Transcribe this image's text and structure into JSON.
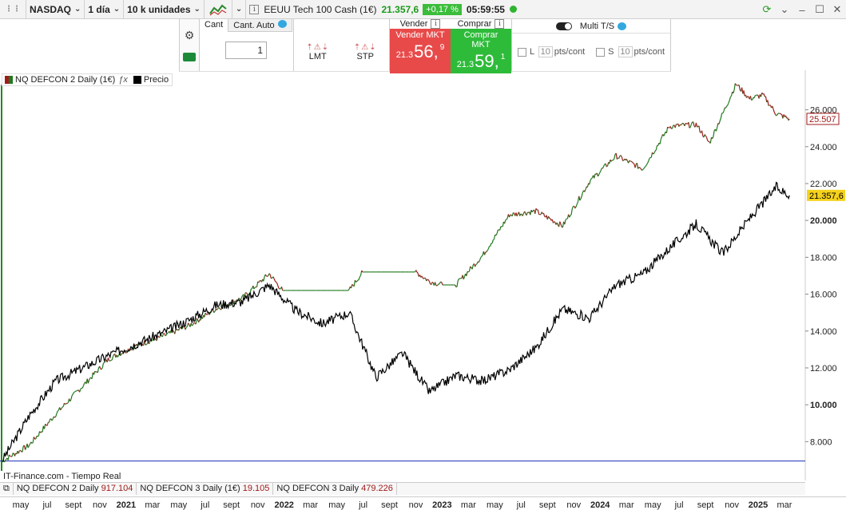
{
  "toolbar": {
    "market": "NASDAQ",
    "period": "1 día",
    "units": "10 k unidades",
    "instrument": "EEUU Tech 100 Cash (1€)",
    "price": "21.357,6",
    "change": "+0,17 %",
    "clock": "05:59:55"
  },
  "order_panel": {
    "tab_qty": "Cant",
    "tab_auto": "Cant. Auto",
    "qty": "1",
    "lmt": "LMT",
    "stp": "STP",
    "sell_head": "Vender",
    "buy_head": "Comprar",
    "sell_title": "Vender MKT",
    "sell_pre": "21.3",
    "sell_big": "56,",
    "sell_sup": "9",
    "buy_title": "Comprar MKT",
    "buy_pre": "21.3",
    "buy_big": "59,",
    "buy_sup": "1",
    "multi_ts": "Multi T/S",
    "long_label": "L",
    "short_label": "S",
    "long_pts": "10",
    "short_pts": "10",
    "pts_unit": "pts/cont"
  },
  "legend": {
    "indicator": "NQ DEFCON 2 Daily (1€)",
    "price_label": "Precio"
  },
  "footer": {
    "source": "IT-Finance.com - Tiempo Real",
    "items": [
      {
        "label": "NQ DEFCON 2 Daily",
        "value": "917.104"
      },
      {
        "label": "NQ DEFCON 3 Daily (1€)",
        "value": "19.105"
      },
      {
        "label": "NQ DEFCON 3 Daily",
        "value": "479.226"
      }
    ]
  },
  "chart_data": {
    "type": "line",
    "yticks": [
      "26.000",
      "24.000",
      "22.000",
      "20.000",
      "18.000",
      "16.000",
      "14.000",
      "12.000",
      "10.000",
      "8.000"
    ],
    "ytick_values": [
      26000,
      24000,
      22000,
      20000,
      18000,
      16000,
      14000,
      12000,
      10000,
      8000
    ],
    "ylim": [
      6500,
      27800
    ],
    "xlabels": [
      "may",
      "jul",
      "sept",
      "nov",
      "2021",
      "mar",
      "may",
      "jul",
      "sept",
      "nov",
      "2022",
      "mar",
      "may",
      "jul",
      "sept",
      "nov",
      "2023",
      "mar",
      "may",
      "jul",
      "sept",
      "nov",
      "2024",
      "mar",
      "may",
      "jul",
      "sept",
      "nov",
      "2025",
      "mar"
    ],
    "xlabel_bold": [
      false,
      false,
      false,
      false,
      true,
      false,
      false,
      false,
      false,
      false,
      true,
      false,
      false,
      false,
      false,
      false,
      true,
      false,
      false,
      false,
      false,
      false,
      true,
      false,
      false,
      false,
      false,
      false,
      true,
      false
    ],
    "last_price_label": "21.357,6",
    "last_indicator_label": "25.507",
    "hline": 6950,
    "colors": {
      "price": "#000000",
      "indicator_up": "#1e7a1e",
      "indicator_down": "#a01b1b",
      "hline": "#1a2fb8",
      "last_price_bg": "#f5d21c"
    },
    "series": [
      {
        "name": "Precio",
        "x": [
          0,
          2,
          4,
          6,
          8,
          10,
          12,
          14,
          16,
          18,
          20,
          22,
          24,
          26,
          28,
          30,
          32,
          34,
          36,
          38,
          40,
          42,
          44,
          46,
          48,
          50,
          52,
          54,
          56,
          58,
          59
        ],
        "values": [
          7000,
          9400,
          11300,
          12000,
          12700,
          13300,
          13900,
          14600,
          15400,
          15600,
          16500,
          15100,
          14400,
          15000,
          11500,
          12800,
          10700,
          11600,
          11300,
          11900,
          13100,
          15200,
          14700,
          16500,
          17100,
          18500,
          19800,
          18200,
          20100,
          21800,
          21357
        ]
      },
      {
        "name": "NQ DEFCON 2 Daily (1€)",
        "x": [
          0,
          2,
          4,
          6,
          8,
          10,
          12,
          14,
          16,
          18,
          20,
          21,
          26,
          27,
          31,
          32,
          33,
          34,
          36,
          38,
          40,
          42,
          44,
          46,
          48,
          50,
          52,
          53,
          55,
          56,
          57,
          58,
          59
        ],
        "values": [
          6950,
          7800,
          9500,
          11000,
          12500,
          13200,
          13700,
          14300,
          15200,
          15800,
          17100,
          16200,
          16200,
          17200,
          17200,
          16700,
          16500,
          16500,
          18100,
          20300,
          20500,
          19700,
          22100,
          23500,
          22800,
          25100,
          25200,
          24200,
          27400,
          26600,
          26800,
          25800,
          25507
        ]
      }
    ]
  }
}
